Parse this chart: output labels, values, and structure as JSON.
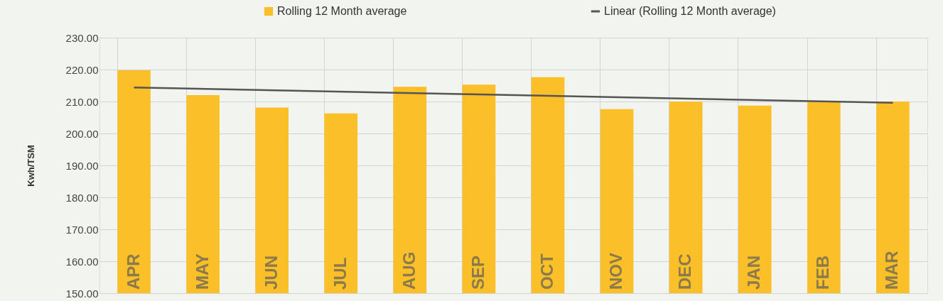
{
  "chart_data": {
    "type": "bar",
    "categories": [
      "APR",
      "MAY",
      "JUN",
      "JUL",
      "AUG",
      "SEP",
      "OCT",
      "NOV",
      "DEC",
      "JAN",
      "FEB",
      "MAR"
    ],
    "series": [
      {
        "name": "Rolling 12 Month average",
        "color": "#fbbf28",
        "values": [
          219.8,
          212.0,
          208.1,
          206.3,
          214.6,
          215.3,
          217.6,
          207.6,
          210.0,
          208.7,
          210.0,
          210.0
        ]
      },
      {
        "name": "Linear (Rolling 12 Month average)",
        "type": "line",
        "color": "#555555",
        "x": [
          "APR",
          "MAR"
        ],
        "values": [
          214.4,
          209.6
        ]
      }
    ],
    "ylabel": "Kwh/TSM",
    "ylim": [
      150,
      230
    ],
    "yticks": [
      {
        "value": 150,
        "label": "150.00"
      },
      {
        "value": 160,
        "label": "160.00"
      },
      {
        "value": 170,
        "label": "170.00"
      },
      {
        "value": 180,
        "label": "180.00"
      },
      {
        "value": 190,
        "label": "190.00"
      },
      {
        "value": 200,
        "label": "200.00"
      },
      {
        "value": 210,
        "label": "210.00"
      },
      {
        "value": 220,
        "label": "220.00"
      },
      {
        "value": 230,
        "label": "230.00"
      }
    ],
    "grid": true,
    "legend": "top",
    "tick_labels": "y"
  }
}
